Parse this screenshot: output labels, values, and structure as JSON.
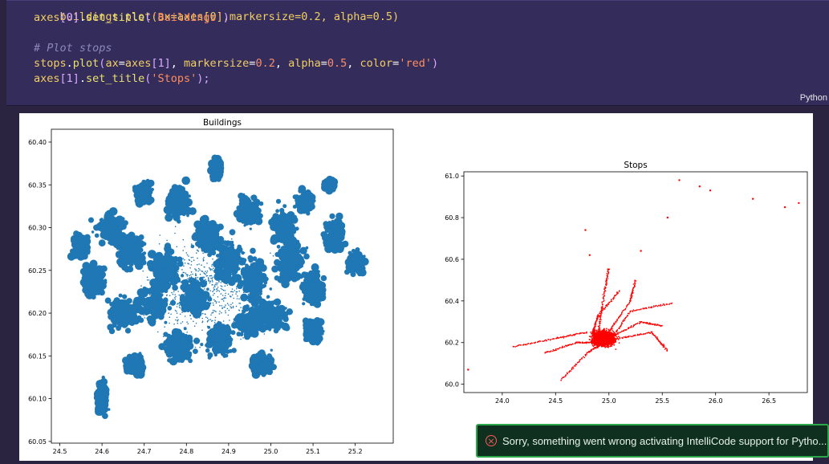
{
  "code": {
    "line0": "buildings.plot(ax=axes[0],markersize=0.2, alpha=0.5)",
    "line1": {
      "a": "axes",
      "b": "[0]",
      "c": ".",
      "d": "set_title",
      "e": "(",
      "f": "'Buildings'",
      "g": ")"
    },
    "comment": "# Plot stops",
    "line3": {
      "a": "stops",
      "b": ".",
      "c": "plot",
      "d": "(",
      "e": "ax",
      "f": "=",
      "g": "axes",
      "h": "[1]",
      "i": ", ",
      "j": "markersize",
      "k": "=",
      "l": "0.2",
      "m": ", ",
      "n": "alpha",
      "o": "=",
      "p": "0.5",
      "q": ", ",
      "r": "color",
      "s": "=",
      "t": "'red'",
      "u": ")"
    },
    "line4": {
      "a": "axes",
      "b": "[1]",
      "c": ".",
      "d": "set_title",
      "e": "(",
      "f": "'Stops'",
      "g": ");"
    }
  },
  "language_label": "Python",
  "toast": {
    "icon": "error-circle-icon",
    "message": "Sorry, something went wrong activating IntelliCode support for Pytho..."
  },
  "chart_data": [
    {
      "type": "scatter",
      "title": "Buildings",
      "color": "#1f77b4",
      "xlim": [
        24.48,
        25.29
      ],
      "ylim": [
        60.048,
        60.415
      ],
      "xticks": [
        "24.5",
        "24.6",
        "24.7",
        "24.8",
        "24.9",
        "25.0",
        "25.1",
        "25.2"
      ],
      "yticks": [
        "60.05",
        "60.10",
        "60.15",
        "60.20",
        "60.25",
        "60.30",
        "60.35",
        "60.40"
      ],
      "extent": {
        "x": [
          24.5,
          25.25
        ],
        "y": [
          60.06,
          60.4
        ]
      }
    },
    {
      "type": "scatter",
      "title": "Stops",
      "color": "#ff0000",
      "xlim": [
        23.64,
        26.86
      ],
      "ylim": [
        59.96,
        61.02
      ],
      "xticks": [
        "24.0",
        "24.5",
        "25.0",
        "25.5",
        "26.0",
        "26.5"
      ],
      "yticks": [
        "60.0",
        "60.2",
        "60.4",
        "60.6",
        "60.8",
        "61.0"
      ],
      "extent": {
        "x": [
          23.65,
          26.8
        ],
        "y": [
          59.99,
          61.0
        ]
      }
    }
  ]
}
